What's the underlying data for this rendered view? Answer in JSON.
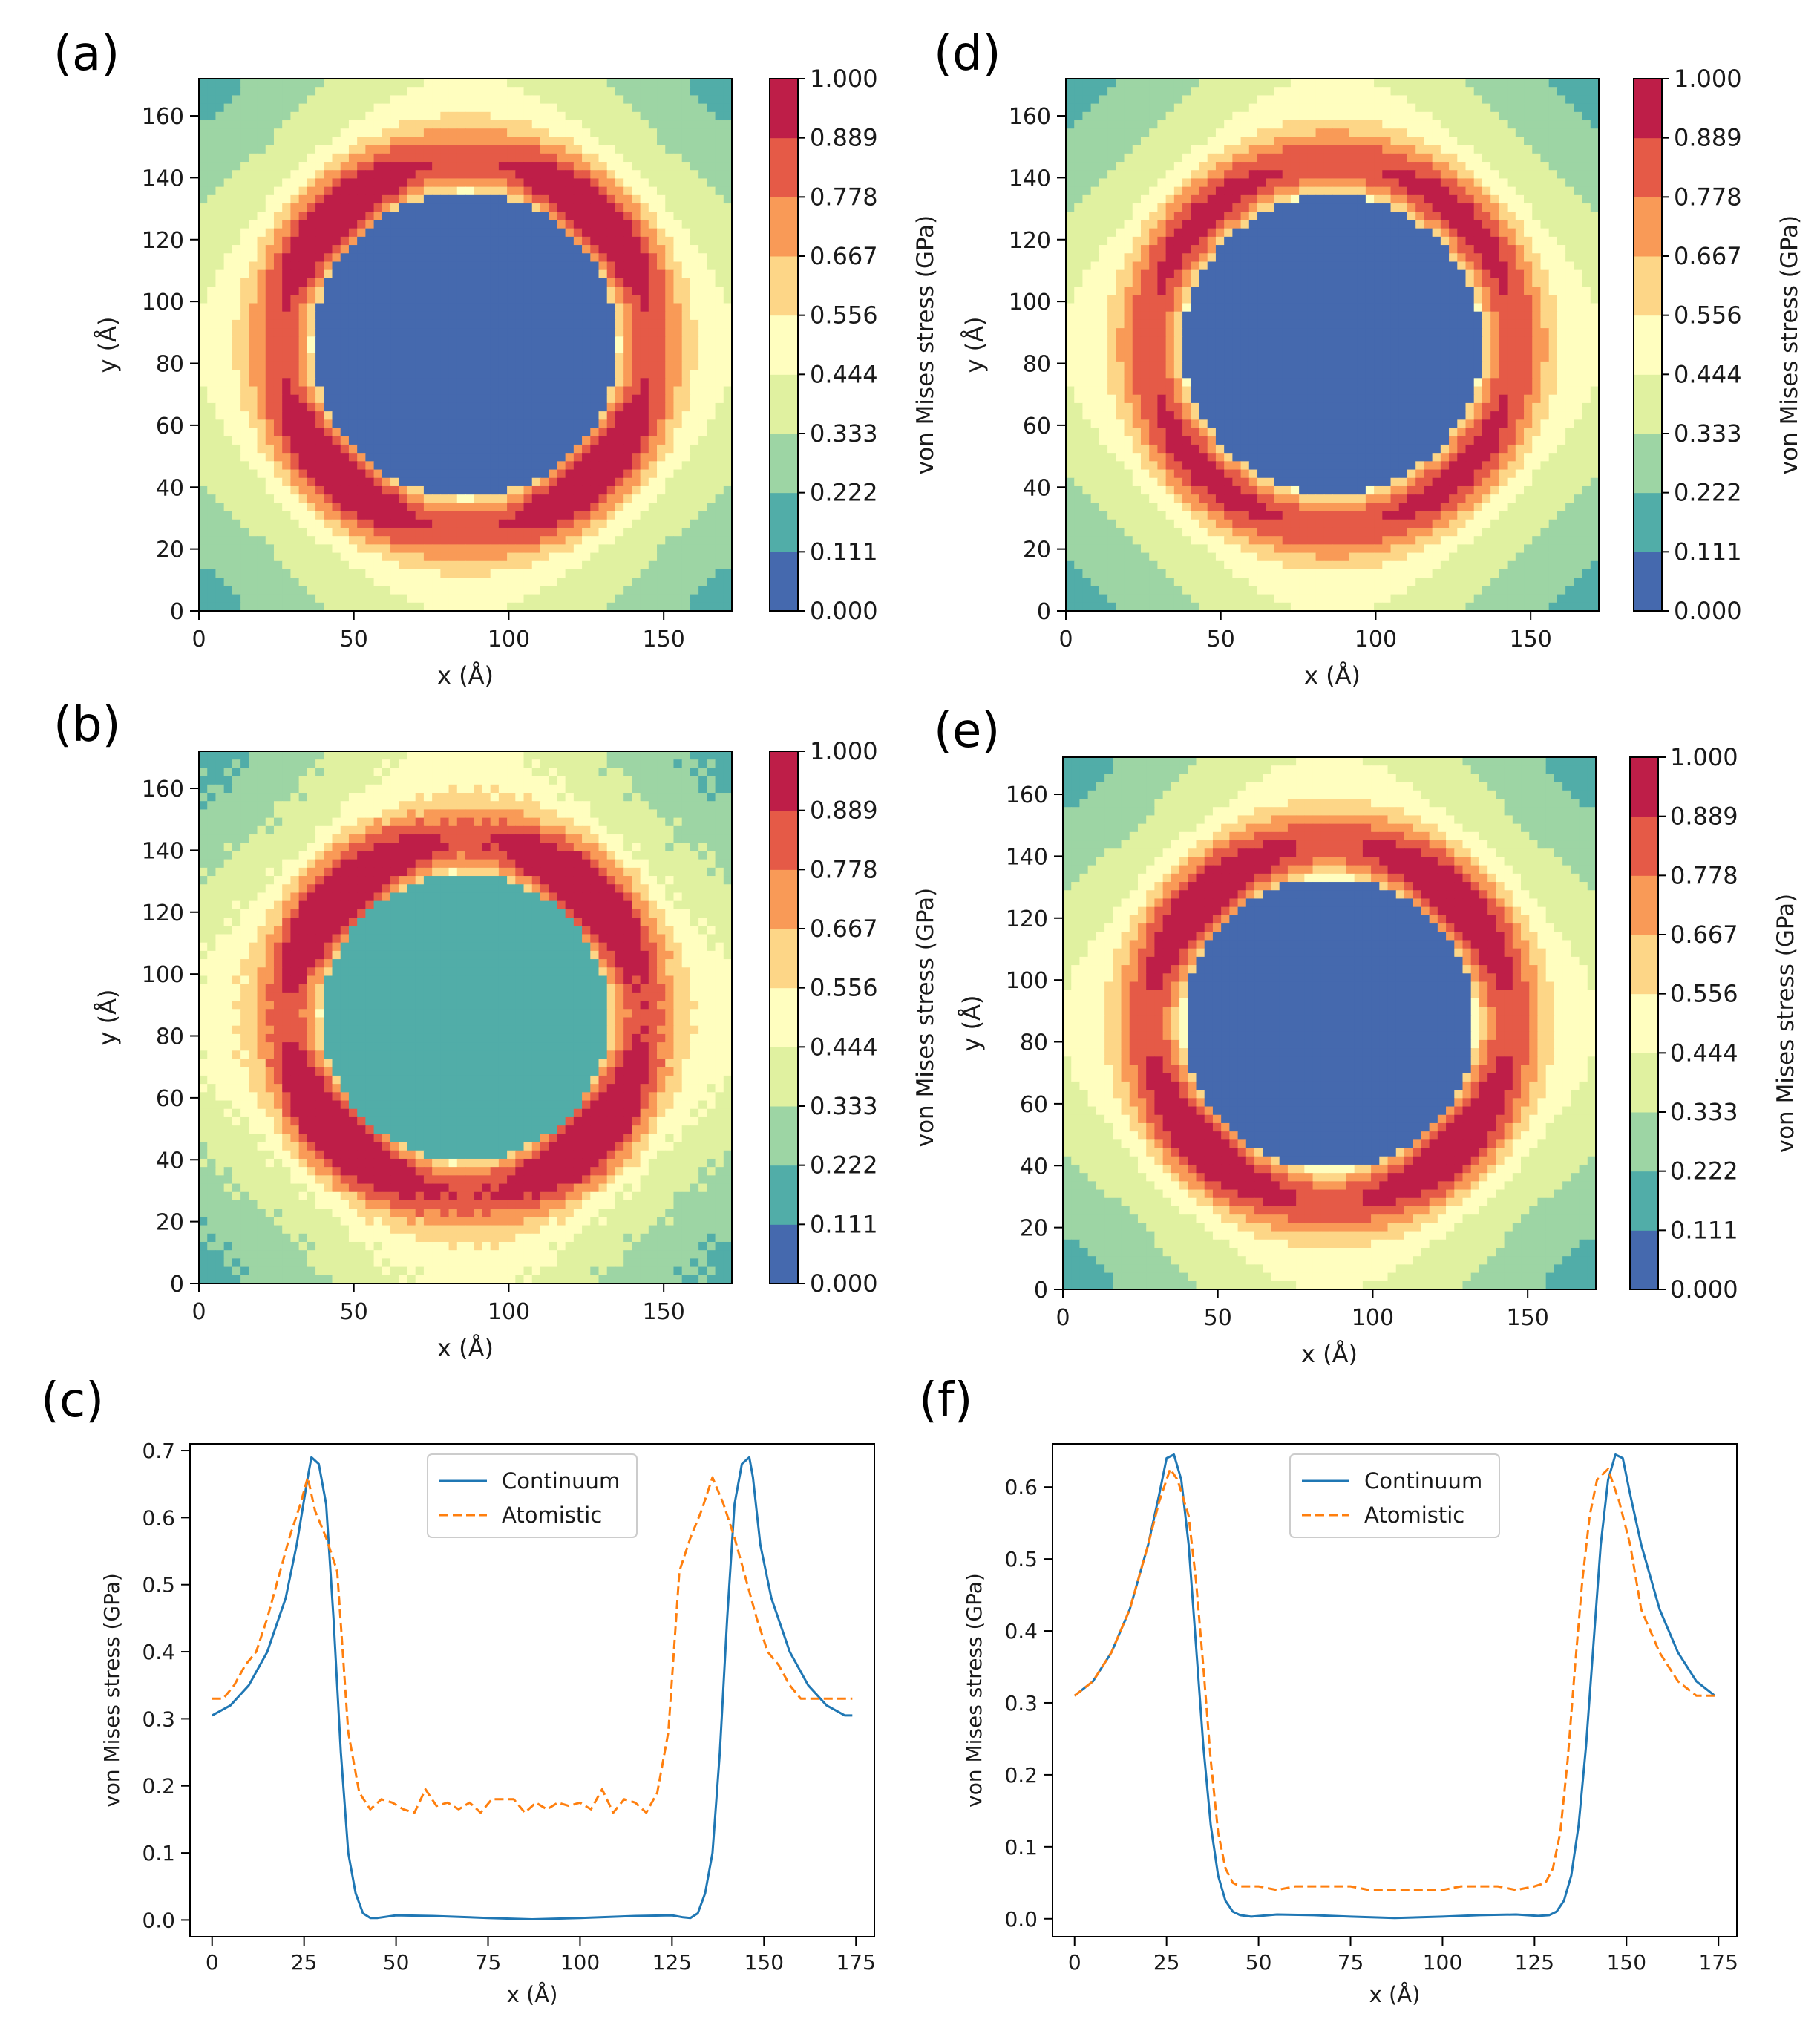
{
  "colors": {
    "levels": [
      "#4569ae",
      "#51ada8",
      "#9dd5a4",
      "#e0f1a0",
      "#fffebf",
      "#fdd687",
      "#f99a57",
      "#e55a47",
      "#be1e48"
    ],
    "continuum": "#1f77b4",
    "atomistic": "#ff7f0e"
  },
  "colorbar": {
    "label": "von Mises stress (GPa)",
    "ticks": [
      "0.000",
      "0.111",
      "0.222",
      "0.333",
      "0.444",
      "0.556",
      "0.667",
      "0.778",
      "0.889",
      "1.000"
    ]
  },
  "map_axes": {
    "xlabel": "x (Å)",
    "ylabel": "y (Å)",
    "xticks": [
      "0",
      "50",
      "100",
      "150"
    ],
    "yticks": [
      "0",
      "20",
      "40",
      "60",
      "80",
      "100",
      "120",
      "140",
      "160"
    ]
  },
  "line_axes": {
    "xlabel": "x (Å)",
    "ylabel": "von Mises stress (GPa)",
    "xticks": [
      "0",
      "25",
      "50",
      "75",
      "100",
      "125",
      "150",
      "175"
    ]
  },
  "panels": [
    {
      "id": "a",
      "label": "(a)"
    },
    {
      "id": "b",
      "label": "(b)"
    },
    {
      "id": "c",
      "label": "(c)"
    },
    {
      "id": "d",
      "label": "(d)"
    },
    {
      "id": "e",
      "label": "(e)"
    },
    {
      "id": "f",
      "label": "(f)"
    }
  ],
  "chart_data": [
    {
      "panel": "(a)",
      "type": "heatmap",
      "xlabel": "x (Å)",
      "ylabel": "y (Å)",
      "xlim": [
        0,
        172
      ],
      "ylim": [
        0,
        172
      ],
      "colorbar_label": "von Mises stress (GPa)",
      "levels": [
        0.0,
        0.111,
        0.222,
        0.333,
        0.444,
        0.556,
        0.667,
        0.778,
        0.889,
        1.0
      ],
      "hole_center": [
        86,
        86
      ],
      "hole_radius": 49,
      "hole_value": 0.0,
      "ring_peak": 0.86,
      "corner_value": 0.17,
      "edge_value": 0.26
    },
    {
      "panel": "(b)",
      "type": "heatmap",
      "xlabel": "x (Å)",
      "ylabel": "y (Å)",
      "xlim": [
        0,
        172
      ],
      "ylim": [
        0,
        172
      ],
      "colorbar_label": "von Mises stress (GPa)",
      "levels": [
        0.0,
        0.111,
        0.222,
        0.333,
        0.444,
        0.556,
        0.667,
        0.778,
        0.889,
        1.0
      ],
      "hole_center": [
        86,
        86
      ],
      "hole_radius": 46,
      "hole_value": 0.17,
      "ring_peak": 0.93,
      "corner_value": 0.18,
      "edge_value": 0.3
    },
    {
      "panel": "(c)",
      "type": "line",
      "xlabel": "x (Å)",
      "ylabel": "von Mises stress (GPa)",
      "xlim": [
        -6,
        180
      ],
      "ylim": [
        -0.025,
        0.71
      ],
      "yticks": [
        0.0,
        0.1,
        0.2,
        0.3,
        0.4,
        0.5,
        0.6,
        0.7
      ],
      "legend": "top-center",
      "series": [
        {
          "name": "Continuum",
          "style": "solid",
          "x": [
            0,
            5,
            10,
            15,
            20,
            23,
            26,
            27,
            29,
            31,
            33,
            35,
            37,
            39,
            41,
            43,
            45,
            50,
            60,
            75,
            87,
            100,
            115,
            125,
            128,
            130,
            132,
            134,
            136,
            138,
            140,
            142,
            144,
            146,
            147,
            149,
            152,
            157,
            162,
            167,
            172,
            174
          ],
          "y": [
            0.305,
            0.32,
            0.35,
            0.4,
            0.48,
            0.56,
            0.66,
            0.69,
            0.68,
            0.62,
            0.45,
            0.25,
            0.1,
            0.04,
            0.01,
            0.003,
            0.003,
            0.007,
            0.006,
            0.003,
            0.001,
            0.003,
            0.006,
            0.007,
            0.004,
            0.003,
            0.01,
            0.04,
            0.1,
            0.25,
            0.45,
            0.62,
            0.68,
            0.69,
            0.66,
            0.56,
            0.48,
            0.4,
            0.35,
            0.32,
            0.305,
            0.305
          ]
        },
        {
          "name": "Atomistic",
          "style": "dashed",
          "x": [
            0,
            3,
            6,
            9,
            12,
            15,
            18,
            21,
            24,
            26,
            28,
            31,
            34,
            37,
            40,
            43,
            46,
            49,
            52,
            55,
            58,
            61,
            64,
            67,
            70,
            73,
            76,
            79,
            82,
            85,
            88,
            91,
            94,
            97,
            100,
            103,
            106,
            109,
            112,
            115,
            118,
            121,
            124,
            127,
            130,
            133,
            136,
            139,
            142,
            145,
            148,
            151,
            154,
            157,
            160,
            163,
            166,
            169,
            172,
            174
          ],
          "y": [
            0.33,
            0.33,
            0.35,
            0.38,
            0.4,
            0.45,
            0.51,
            0.57,
            0.62,
            0.66,
            0.61,
            0.57,
            0.52,
            0.28,
            0.19,
            0.165,
            0.18,
            0.175,
            0.165,
            0.16,
            0.195,
            0.17,
            0.175,
            0.165,
            0.175,
            0.16,
            0.18,
            0.18,
            0.18,
            0.16,
            0.175,
            0.165,
            0.175,
            0.17,
            0.175,
            0.165,
            0.195,
            0.16,
            0.18,
            0.175,
            0.16,
            0.19,
            0.28,
            0.52,
            0.57,
            0.61,
            0.66,
            0.62,
            0.57,
            0.51,
            0.45,
            0.4,
            0.38,
            0.35,
            0.33,
            0.33,
            0.33,
            0.33,
            0.33,
            0.33
          ]
        }
      ]
    },
    {
      "panel": "(d)",
      "type": "heatmap",
      "xlabel": "x (Å)",
      "ylabel": "y (Å)",
      "xlim": [
        0,
        172
      ],
      "ylim": [
        0,
        172
      ],
      "colorbar_label": "von Mises stress (GPa)",
      "levels": [
        0.0,
        0.111,
        0.222,
        0.333,
        0.444,
        0.556,
        0.667,
        0.778,
        0.889,
        1.0
      ],
      "hole_center": [
        86,
        86
      ],
      "hole_radius": 48,
      "hole_value": 0.0,
      "ring_peak": 0.74,
      "corner_value": 0.17,
      "edge_value": 0.27
    },
    {
      "panel": "(e)",
      "type": "heatmap",
      "xlabel": "x (Å)",
      "ylabel": "y (Å)",
      "xlim": [
        0,
        172
      ],
      "ylim": [
        0,
        172
      ],
      "colorbar_label": "von Mises stress (GPa)",
      "levels": [
        0.0,
        0.111,
        0.222,
        0.333,
        0.444,
        0.556,
        0.667,
        0.778,
        0.889,
        1.0
      ],
      "hole_center": [
        86,
        86
      ],
      "hole_radius": 47,
      "hole_value": 0.0,
      "ring_peak": 0.84,
      "corner_value": 0.17,
      "edge_value": 0.27
    },
    {
      "panel": "(f)",
      "type": "line",
      "xlabel": "x (Å)",
      "ylabel": "von Mises stress (GPa)",
      "xlim": [
        -6,
        180
      ],
      "ylim": [
        -0.025,
        0.66
      ],
      "yticks": [
        0.0,
        0.1,
        0.2,
        0.3,
        0.4,
        0.5,
        0.6
      ],
      "legend": "top-center",
      "series": [
        {
          "name": "Continuum",
          "style": "solid",
          "x": [
            0,
            5,
            10,
            15,
            20,
            23,
            25,
            27,
            29,
            31,
            33,
            35,
            37,
            39,
            41,
            43,
            45,
            48,
            55,
            65,
            75,
            87,
            100,
            110,
            120,
            126,
            129,
            131,
            133,
            135,
            137,
            139,
            141,
            143,
            145,
            147,
            149,
            151,
            154,
            159,
            164,
            169,
            174
          ],
          "y": [
            0.31,
            0.33,
            0.37,
            0.43,
            0.52,
            0.59,
            0.64,
            0.645,
            0.61,
            0.52,
            0.38,
            0.24,
            0.13,
            0.06,
            0.025,
            0.01,
            0.005,
            0.003,
            0.006,
            0.005,
            0.003,
            0.001,
            0.003,
            0.005,
            0.006,
            0.004,
            0.005,
            0.01,
            0.025,
            0.06,
            0.13,
            0.24,
            0.38,
            0.52,
            0.61,
            0.645,
            0.64,
            0.59,
            0.52,
            0.43,
            0.37,
            0.33,
            0.31
          ]
        },
        {
          "name": "Atomistic",
          "style": "dashed",
          "x": [
            0,
            5,
            10,
            15,
            20,
            23,
            26,
            28,
            31,
            33,
            35,
            37,
            39,
            41,
            43,
            45,
            47,
            50,
            55,
            60,
            65,
            70,
            75,
            80,
            85,
            90,
            95,
            100,
            105,
            110,
            115,
            120,
            125,
            128,
            130,
            132,
            134,
            136,
            138,
            140,
            142,
            145,
            148,
            151,
            154,
            159,
            164,
            169,
            174
          ],
          "y": [
            0.31,
            0.33,
            0.37,
            0.43,
            0.52,
            0.58,
            0.625,
            0.61,
            0.56,
            0.47,
            0.35,
            0.22,
            0.12,
            0.07,
            0.05,
            0.045,
            0.045,
            0.045,
            0.04,
            0.045,
            0.045,
            0.045,
            0.045,
            0.04,
            0.04,
            0.04,
            0.04,
            0.04,
            0.045,
            0.045,
            0.045,
            0.04,
            0.045,
            0.05,
            0.07,
            0.12,
            0.22,
            0.35,
            0.47,
            0.56,
            0.61,
            0.625,
            0.58,
            0.52,
            0.43,
            0.37,
            0.33,
            0.31,
            0.31
          ]
        }
      ]
    }
  ]
}
